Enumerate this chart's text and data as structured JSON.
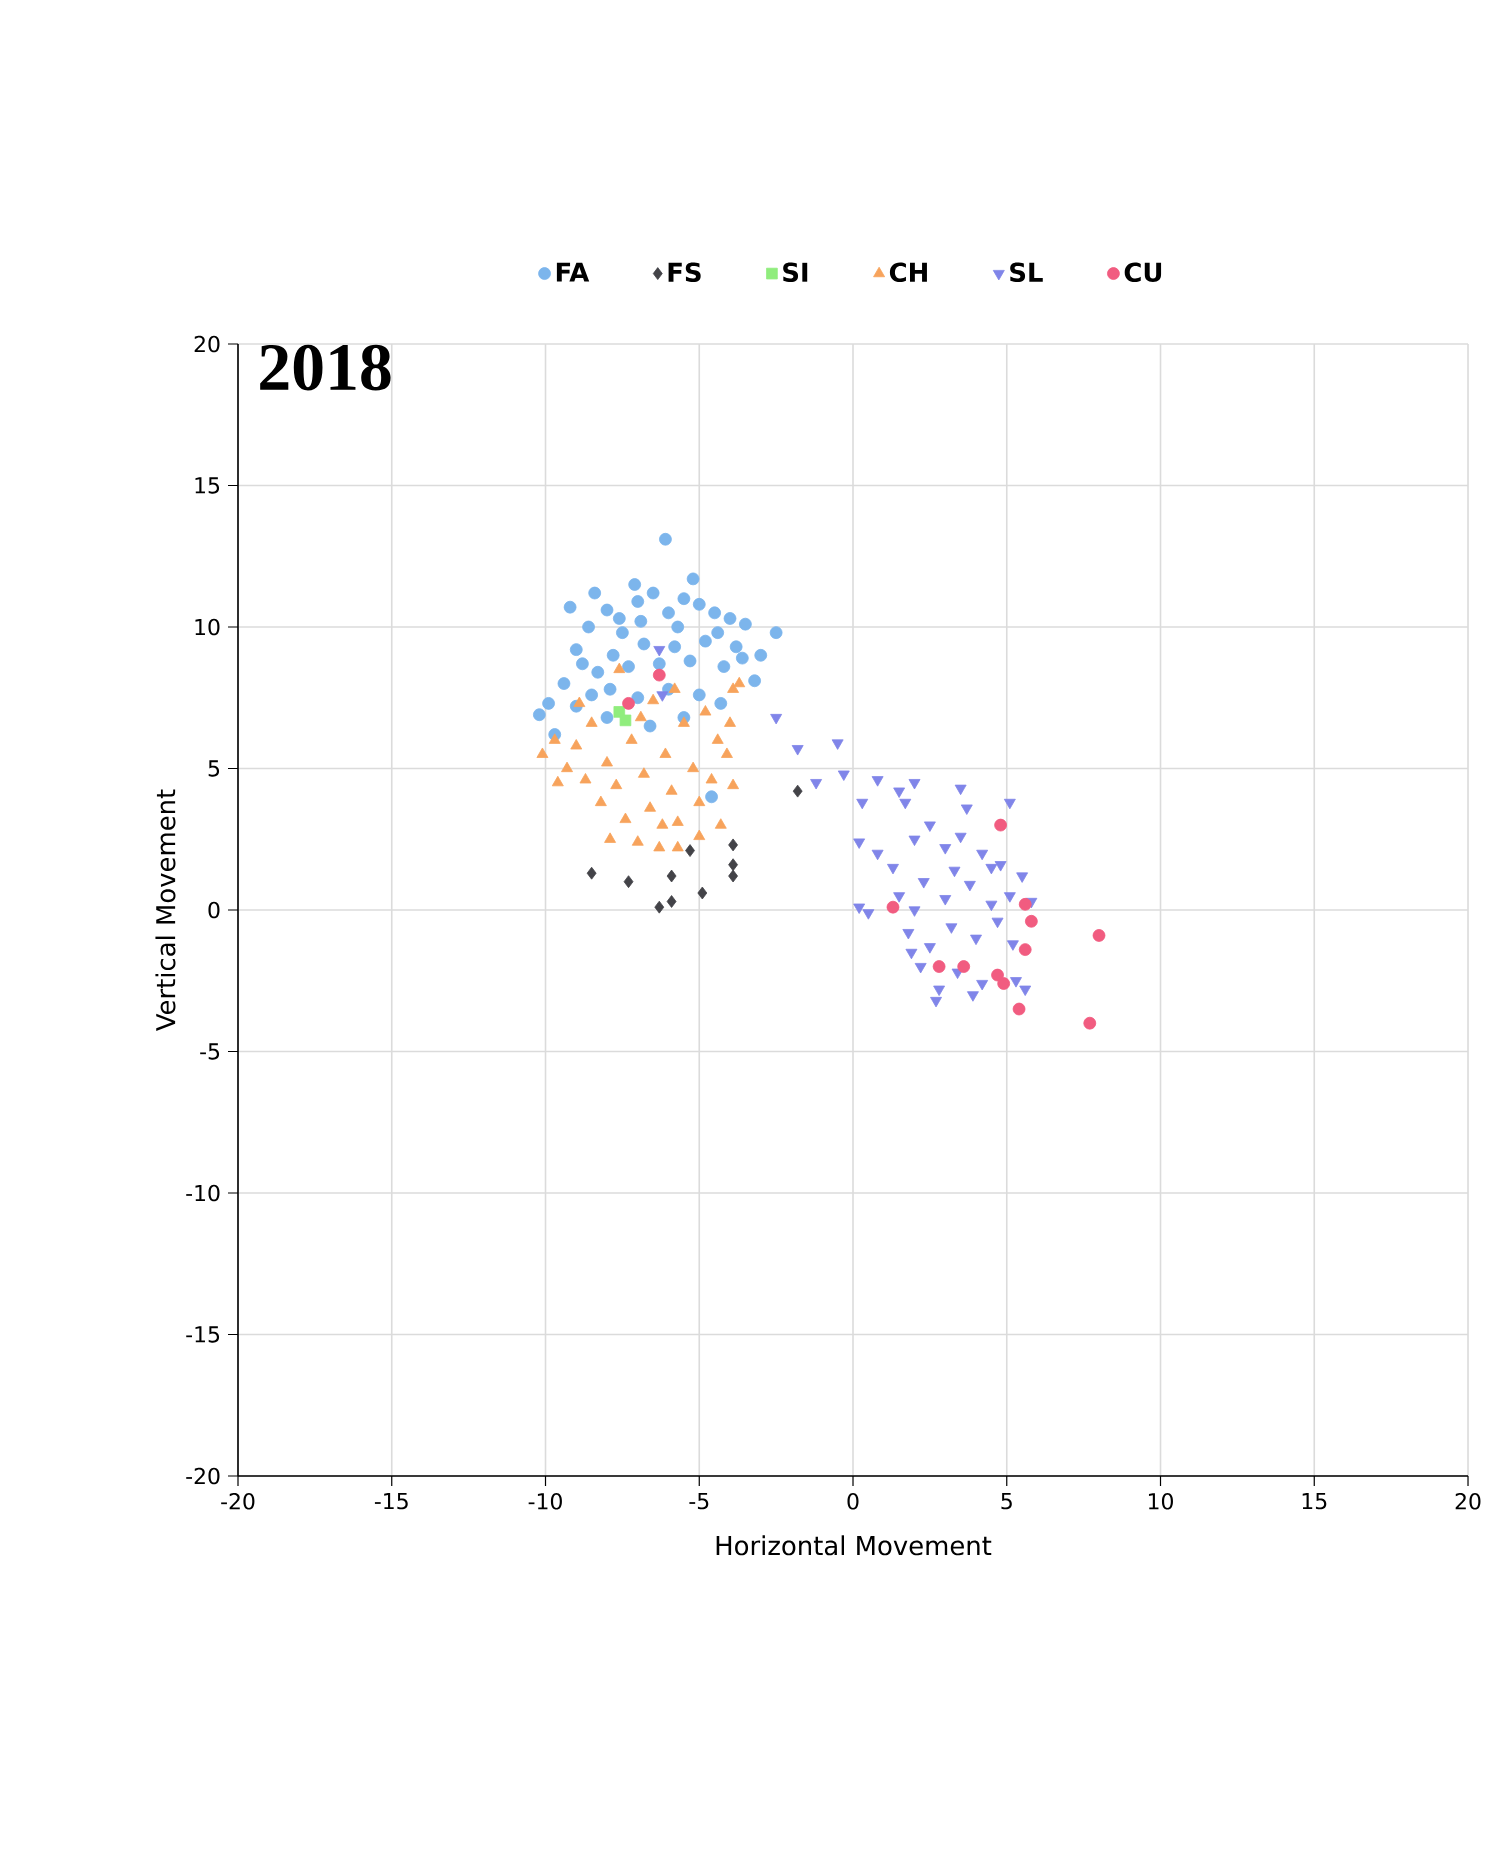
{
  "chart_data": {
    "type": "scatter",
    "title": "2018",
    "xlabel": "Horizontal Movement",
    "ylabel": "Vertical Movement",
    "xlim": [
      -20,
      20
    ],
    "ylim": [
      -20,
      20
    ],
    "xticks": [
      -20,
      -15,
      -10,
      -5,
      0,
      5,
      10,
      15,
      20
    ],
    "yticks": [
      -20,
      -15,
      -10,
      -5,
      0,
      5,
      10,
      15,
      20
    ],
    "grid": true,
    "legend": "top",
    "series": [
      {
        "name": "FA",
        "color": "#7cb5ec",
        "marker": "circle",
        "x": [
          -6.1,
          -5.2,
          -7.1,
          -8.4,
          -9.2,
          -10.2,
          -9.7,
          -9.9,
          -9.4,
          -9.0,
          -8.6,
          -8.0,
          -7.5,
          -7.0,
          -6.5,
          -6.0,
          -5.5,
          -5.0,
          -4.5,
          -4.0,
          -3.5,
          -2.5,
          -3.0,
          -3.2,
          -3.8,
          -4.2,
          -4.8,
          -5.3,
          -5.8,
          -6.3,
          -6.8,
          -7.3,
          -7.8,
          -8.3,
          -8.8,
          -8.5,
          -7.9,
          -7.0,
          -6.0,
          -5.0,
          -4.3,
          -5.5,
          -6.6,
          -4.6,
          -8.0,
          -9.0,
          -5.7,
          -6.9,
          -4.4,
          -7.6,
          -3.6
        ],
        "values": [
          13.1,
          11.7,
          11.5,
          11.2,
          10.7,
          6.9,
          6.2,
          7.3,
          8.0,
          9.2,
          10.0,
          10.6,
          9.8,
          10.9,
          11.2,
          10.5,
          11.0,
          10.8,
          10.5,
          10.3,
          10.1,
          9.8,
          9.0,
          8.1,
          9.3,
          8.6,
          9.5,
          8.8,
          9.3,
          8.7,
          9.4,
          8.6,
          9.0,
          8.4,
          8.7,
          7.6,
          7.8,
          7.5,
          7.8,
          7.6,
          7.3,
          6.8,
          6.5,
          4.0,
          6.8,
          7.2,
          10.0,
          10.2,
          9.8,
          10.3,
          8.9
        ]
      },
      {
        "name": "FS",
        "color": "#434348",
        "marker": "diamond",
        "x": [
          -8.5,
          -7.3,
          -6.3,
          -5.9,
          -5.9,
          -5.3,
          -4.9,
          -3.9,
          -3.9,
          -3.9,
          -1.8
        ],
        "values": [
          1.3,
          1.0,
          0.1,
          0.3,
          1.2,
          2.1,
          0.6,
          1.6,
          2.3,
          1.2,
          4.2
        ]
      },
      {
        "name": "SI",
        "color": "#90ed7d",
        "marker": "square",
        "x": [
          -7.6,
          -7.4
        ],
        "values": [
          7.0,
          6.7
        ]
      },
      {
        "name": "CH",
        "color": "#f7a35c",
        "marker": "triangle",
        "x": [
          -10.1,
          -9.7,
          -9.3,
          -9.0,
          -8.7,
          -8.5,
          -8.2,
          -8.0,
          -7.7,
          -7.6,
          -7.4,
          -7.2,
          -7.0,
          -6.8,
          -6.6,
          -6.5,
          -6.3,
          -6.1,
          -5.9,
          -5.7,
          -5.5,
          -5.7,
          -5.2,
          -5.0,
          -4.8,
          -4.6,
          -4.4,
          -4.3,
          -4.1,
          -3.9,
          -3.7,
          -4.0,
          -8.9,
          -9.6,
          -6.9,
          -5.8,
          -6.2,
          -7.9,
          -5.0,
          -3.9
        ],
        "values": [
          5.5,
          6.0,
          5.0,
          5.8,
          4.6,
          6.6,
          3.8,
          5.2,
          4.4,
          8.5,
          3.2,
          6.0,
          2.4,
          4.8,
          3.6,
          7.4,
          2.2,
          5.5,
          4.2,
          3.1,
          6.6,
          2.2,
          5.0,
          3.8,
          7.0,
          4.6,
          6.0,
          3.0,
          5.5,
          7.8,
          8.0,
          6.6,
          7.3,
          4.5,
          6.8,
          7.8,
          3.0,
          2.5,
          2.6,
          4.4
        ]
      },
      {
        "name": "SL",
        "color": "#8085e9",
        "marker": "triangle-down",
        "x": [
          -6.3,
          -6.2,
          -2.5,
          -1.8,
          -0.5,
          -1.2,
          -0.3,
          0.8,
          1.5,
          2.0,
          0.3,
          1.7,
          3.5,
          3.7,
          5.1,
          0.2,
          0.8,
          1.3,
          2.0,
          2.5,
          3.0,
          3.5,
          4.2,
          4.8,
          5.5,
          0.2,
          0.5,
          1.5,
          2.3,
          3.0,
          3.8,
          4.5,
          5.1,
          5.8,
          1.8,
          2.5,
          3.2,
          4.0,
          4.7,
          5.2,
          2.2,
          2.8,
          3.4,
          4.2,
          5.3,
          5.6,
          2.7,
          3.9,
          1.9,
          4.5,
          3.3,
          2.0
        ],
        "values": [
          9.2,
          7.6,
          6.8,
          5.7,
          5.9,
          4.5,
          4.8,
          4.6,
          4.2,
          4.5,
          3.8,
          3.8,
          4.3,
          3.6,
          3.8,
          2.4,
          2.0,
          1.5,
          2.5,
          3.0,
          2.2,
          2.6,
          2.0,
          1.6,
          1.2,
          0.1,
          -0.1,
          0.5,
          1.0,
          0.4,
          0.9,
          0.2,
          0.5,
          0.3,
          -0.8,
          -1.3,
          -0.6,
          -1.0,
          -0.4,
          -1.2,
          -2.0,
          -2.8,
          -2.2,
          -2.6,
          -2.5,
          -2.8,
          -3.2,
          -3.0,
          -1.5,
          1.5,
          1.4,
          0.0
        ]
      },
      {
        "name": "CU",
        "color": "#f15c80",
        "marker": "circle",
        "x": [
          -7.3,
          -6.3,
          1.3,
          2.8,
          3.6,
          4.7,
          4.9,
          4.8,
          5.6,
          5.8,
          5.6,
          5.4,
          7.7,
          8.0
        ],
        "values": [
          7.3,
          8.3,
          0.1,
          -2.0,
          -2.0,
          -2.3,
          -2.6,
          3.0,
          0.2,
          -0.4,
          -1.4,
          -3.5,
          -4.0,
          -0.9
        ]
      }
    ]
  }
}
